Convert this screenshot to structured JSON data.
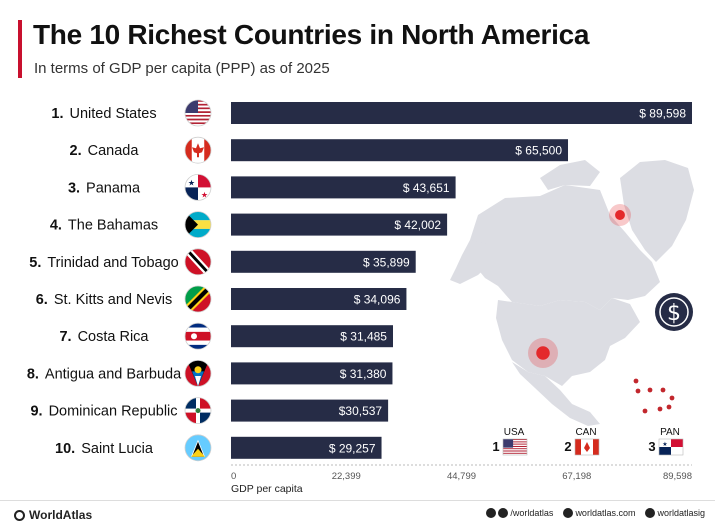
{
  "header": {
    "title": "The 10 Richest Countries in North America",
    "subtitle": "In terms of GDP per capita (PPP) as of 2025"
  },
  "colors": {
    "bar": "#262c46",
    "accent": "#c8102e",
    "map": "#dcdde3",
    "marker": "#e4292b"
  },
  "chart_data": {
    "type": "bar",
    "orientation": "horizontal",
    "title": "The 10 Richest Countries in North America",
    "subtitle": "In terms of GDP per capita (PPP) as of 2025",
    "xlabel": "GDP per capita",
    "xlim": [
      0,
      89598
    ],
    "xticks": [
      0,
      22399,
      44799,
      67198,
      89598
    ],
    "xtick_labels": [
      "0",
      "22,399",
      "44,799",
      "67,198",
      "89,598"
    ],
    "ranks": [
      "1.",
      "2.",
      "3.",
      "4.",
      "5.",
      "6.",
      "7.",
      "8.",
      "9.",
      "10."
    ],
    "categories": [
      "United States",
      "Canada",
      "Panama",
      "The Bahamas",
      "Trinidad and Tobago",
      "St. Kitts and Nevis",
      "Costa Rica",
      "Antigua and Barbuda",
      "Dominican Republic",
      "Saint Lucia"
    ],
    "values": [
      89598,
      65500,
      43651,
      42002,
      35899,
      34096,
      31485,
      31380,
      30537,
      29257
    ],
    "value_labels": [
      "$ 89,598",
      "$ 65,500",
      "$ 43,651",
      "$ 42,002",
      "$ 35,899",
      "$ 34,096",
      "$ 31,485",
      "$ 31,380",
      "$30,537",
      "$ 29,257"
    ],
    "flag_icons": [
      "usa-flag-icon",
      "canada-flag-icon",
      "panama-flag-icon",
      "bahamas-flag-icon",
      "trinidad-flag-icon",
      "st-kitts-flag-icon",
      "costa-rica-flag-icon",
      "antigua-flag-icon",
      "dominican-flag-icon",
      "saint-lucia-flag-icon"
    ],
    "legend_top3": [
      {
        "rank": "1",
        "code": "USA"
      },
      {
        "rank": "2",
        "code": "CAN"
      },
      {
        "rank": "3",
        "code": "PAN"
      }
    ]
  },
  "footer": {
    "brand": "WorldAtlas",
    "social_handle": "/worldatlas",
    "website": "worldatlas.com",
    "instagram": "worldatlasig"
  }
}
